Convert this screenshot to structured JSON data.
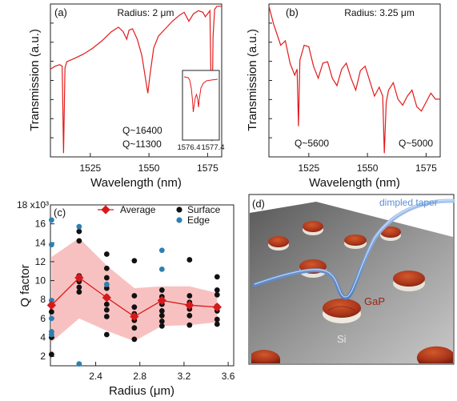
{
  "colors": {
    "trace": "#e31a1c",
    "average": "#d7191c",
    "band": "#f8c1c1",
    "surface": "#111111",
    "edge": "#2f7fb0",
    "taper": "#6f9fd8",
    "gap": "#b23a18",
    "substrate": "#7a7a7a"
  },
  "chart_data": [
    {
      "type": "line",
      "panel": "(a)",
      "annotation": "Radius: 2 μm",
      "xlabel": "Wavelength (nm)",
      "ylabel": "Transmission (a.u.)",
      "xlim": [
        1508,
        1581
      ],
      "xticks": [
        "1525",
        "1550",
        "1575"
      ],
      "q_labels": [
        "Q~16400",
        "Q~11300"
      ],
      "inset": {
        "xticks": [
          "1576.4",
          "1577.4"
        ],
        "xlim": [
          1576.2,
          1577.8
        ]
      },
      "series": [
        {
          "x": [
            1508,
            1510,
            1512,
            1513,
            1513.6,
            1514.2,
            1515,
            1518,
            1522,
            1526,
            1530,
            1534,
            1537,
            1539,
            1540.5,
            1541.5,
            1543,
            1545,
            1547,
            1548.5,
            1549.5,
            1550.5,
            1552,
            1554,
            1557,
            1560,
            1563,
            1565,
            1567,
            1569,
            1571,
            1573,
            1574,
            1575,
            1576,
            1576.8,
            1577.3,
            1578,
            1579,
            1580,
            1581
          ],
          "y": [
            0.58,
            0.6,
            0.61,
            0.6,
            0.02,
            0.59,
            0.63,
            0.65,
            0.68,
            0.72,
            0.77,
            0.83,
            0.86,
            0.83,
            0.78,
            0.84,
            0.85,
            0.78,
            0.67,
            0.52,
            0.42,
            0.55,
            0.72,
            0.8,
            0.85,
            0.9,
            0.94,
            0.96,
            0.9,
            0.95,
            0.97,
            0.96,
            0.93,
            0.95,
            0.97,
            0.1,
            0.8,
            0.98,
            1.0,
            1.0,
            1.0
          ]
        }
      ]
    },
    {
      "type": "line",
      "panel": "(b)",
      "annotation": "Radius: 3.25 μm",
      "xlabel": "Wavelength (nm)",
      "ylabel": "Transmission (a.u.)",
      "xlim": [
        1508,
        1581
      ],
      "xticks": [
        "1525",
        "1550",
        "1575"
      ],
      "q_labels": [
        "Q~5600",
        "Q~5000"
      ],
      "series": [
        {
          "x": [
            1508,
            1510,
            1513,
            1515,
            1517,
            1519,
            1520,
            1520.6,
            1521.2,
            1523,
            1525,
            1527,
            1529,
            1531,
            1533,
            1535,
            1537,
            1539,
            1541,
            1543,
            1545,
            1547,
            1549,
            1551,
            1553,
            1555,
            1556.5,
            1557.2,
            1558,
            1559,
            1561,
            1563,
            1565,
            1567,
            1569,
            1571,
            1573,
            1575,
            1577,
            1579,
            1581
          ],
          "y": [
            1.0,
            0.88,
            0.74,
            0.77,
            0.62,
            0.54,
            0.58,
            0.2,
            0.64,
            0.74,
            0.73,
            0.6,
            0.52,
            0.62,
            0.63,
            0.52,
            0.47,
            0.58,
            0.62,
            0.52,
            0.44,
            0.57,
            0.6,
            0.5,
            0.4,
            0.46,
            0.4,
            0.02,
            0.36,
            0.44,
            0.49,
            0.38,
            0.34,
            0.4,
            0.44,
            0.33,
            0.3,
            0.36,
            0.42,
            0.38,
            0.38
          ]
        }
      ]
    },
    {
      "type": "scatter",
      "panel": "(c)",
      "xlabel": "Radius (μm)",
      "ylabel": "Q factor",
      "yunit": "×10³",
      "xlim": [
        1.99,
        3.65
      ],
      "ylim": [
        1,
        18
      ],
      "xticks": [
        2.4,
        2.8,
        3.2,
        3.6
      ],
      "xtick_labels": [
        "2.4",
        "2.8",
        "3.2",
        "3.6"
      ],
      "yticks": [
        2,
        4,
        6,
        8,
        10,
        12,
        14,
        16,
        18
      ],
      "ytick_labels": [
        "2",
        "4",
        "6",
        "8",
        "10",
        "12",
        "14",
        "16",
        "18 x10³"
      ],
      "legend": [
        "Average",
        "Surface",
        "Edge"
      ],
      "average": {
        "x": [
          2.0,
          2.25,
          2.5,
          2.75,
          3.0,
          3.25,
          3.5
        ],
        "y": [
          7.4,
          10.3,
          8.2,
          6.2,
          7.9,
          7.4,
          7.2
        ]
      },
      "band": {
        "x": [
          2.0,
          2.25,
          2.5,
          2.75,
          3.0,
          3.25,
          3.5
        ],
        "lower": [
          3.5,
          6.0,
          4.7,
          3.6,
          5.2,
          5.3,
          5.6
        ],
        "upper": [
          12.5,
          14.5,
          11.6,
          9.2,
          9.4,
          9.4,
          8.7
        ]
      },
      "series": [
        {
          "name": "Surface",
          "points": [
            [
              2.0,
              2.2
            ],
            [
              2.0,
              4.0
            ],
            [
              2.0,
              6.7
            ],
            [
              2.0,
              7.5
            ],
            [
              2.25,
              8.8
            ],
            [
              2.25,
              9.3
            ],
            [
              2.25,
              9.9
            ],
            [
              2.25,
              10.5
            ],
            [
              2.25,
              14.2
            ],
            [
              2.25,
              15.2
            ],
            [
              2.5,
              4.3
            ],
            [
              2.5,
              6.2
            ],
            [
              2.5,
              6.9
            ],
            [
              2.5,
              7.5
            ],
            [
              2.5,
              8.3
            ],
            [
              2.5,
              9.2
            ],
            [
              2.5,
              10.3
            ],
            [
              2.5,
              11.3
            ],
            [
              2.5,
              12.8
            ],
            [
              2.75,
              3.8
            ],
            [
              2.75,
              5.0
            ],
            [
              2.75,
              5.8
            ],
            [
              2.75,
              6.5
            ],
            [
              2.75,
              7.2
            ],
            [
              2.75,
              8.4
            ],
            [
              2.75,
              12.1
            ],
            [
              3.0,
              5.2
            ],
            [
              3.0,
              5.7
            ],
            [
              3.0,
              6.3
            ],
            [
              3.0,
              6.8
            ],
            [
              3.0,
              7.5
            ],
            [
              3.0,
              8.3
            ],
            [
              3.0,
              9.0
            ],
            [
              3.25,
              5.3
            ],
            [
              3.25,
              6.3
            ],
            [
              3.25,
              7.0
            ],
            [
              3.25,
              7.7
            ],
            [
              3.25,
              8.4
            ],
            [
              3.25,
              12.2
            ],
            [
              3.5,
              5.4
            ],
            [
              3.5,
              5.9
            ],
            [
              3.5,
              6.8
            ],
            [
              3.5,
              7.3
            ],
            [
              3.5,
              8.5
            ],
            [
              3.5,
              9.0
            ],
            [
              3.5,
              10.4
            ]
          ]
        },
        {
          "name": "Edge",
          "points": [
            [
              2.0,
              16.4
            ],
            [
              2.0,
              13.8
            ],
            [
              2.0,
              7.9
            ],
            [
              2.0,
              6.0
            ],
            [
              2.0,
              4.6
            ],
            [
              2.0,
              4.3
            ],
            [
              2.25,
              15.7
            ],
            [
              2.25,
              1.2
            ],
            [
              2.5,
              9.6
            ],
            [
              3.0,
              13.2
            ],
            [
              3.0,
              11.2
            ]
          ]
        }
      ]
    }
  ],
  "panel_d": {
    "panel": "(d)",
    "taper_label": "dimpled taper",
    "gap_label": "GaP",
    "si_label": "Si"
  }
}
